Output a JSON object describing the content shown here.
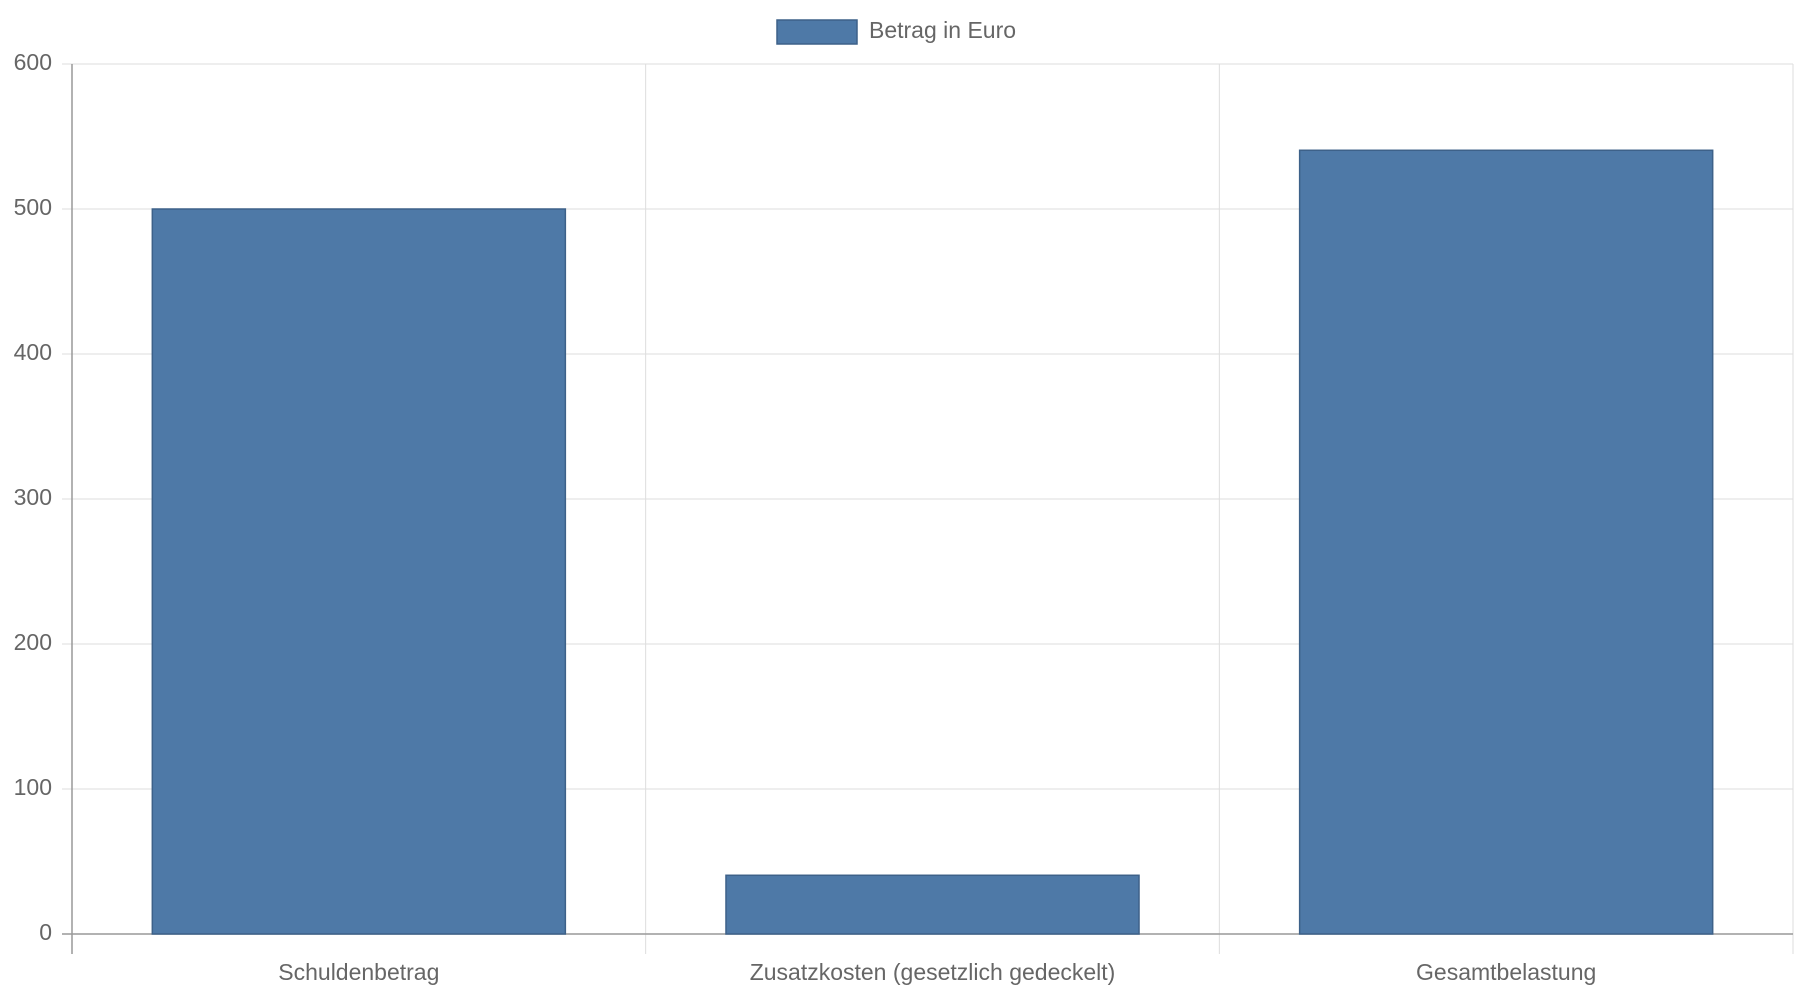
{
  "chart_data": {
    "type": "bar",
    "categories": [
      "Schuldenbetrag",
      "Zusatzkosten (gesetzlich gedeckelt)",
      "Gesamtbelastung"
    ],
    "series": [
      {
        "name": "Betrag in Euro",
        "color": "#4e79a7",
        "values": [
          500,
          40.5,
          540.5
        ]
      }
    ],
    "ylim": [
      0,
      600
    ],
    "yticks": [
      0,
      100,
      200,
      300,
      400,
      500,
      600
    ],
    "grid": true,
    "legend": "top"
  }
}
